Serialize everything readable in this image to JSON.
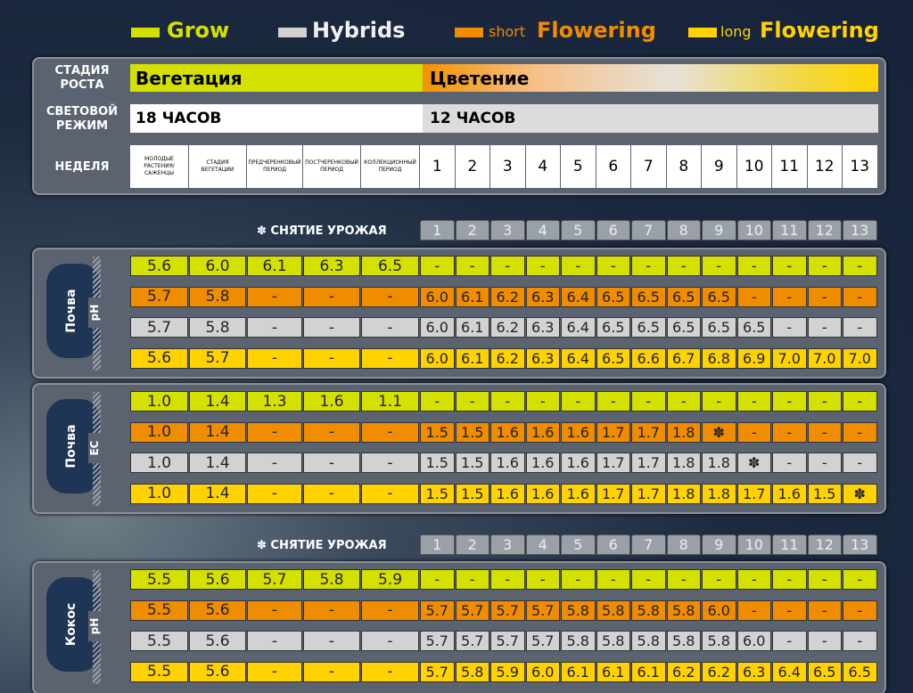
{
  "legend": [
    {
      "label": "Grow",
      "color": "#d4e000"
    },
    {
      "label": "Hybrids",
      "color": "#d2d2d2"
    },
    {
      "prefix": "short",
      "label": "Flowering",
      "color": "#f08c00"
    },
    {
      "prefix": "long",
      "label": "Flowering",
      "color": "#ffd200"
    }
  ],
  "header": {
    "stage": {
      "label": "СТАДИЯ РОСТА",
      "vegetation": "Вегетация",
      "flowering": "Цветение"
    },
    "light": {
      "label": "СВЕТОВОЙ РЕЖИМ",
      "vegetation": "18 ЧАСОВ",
      "flowering": "12 ЧАСОВ"
    },
    "week": {
      "label": "НЕДЕЛЯ",
      "periods": [
        "МОЛОДЫЕ РАСТЕНИЯ/ САЖЕНЦЫ",
        "СТАДИЯ ВЕГЕТАЦИИ",
        "ПРЕДЧЕРЕНКОВЫЙ ПЕРИОД",
        "ПОСТЧЕРЕНКОВЫЙ ПЕРИОД",
        "КОЛЛЕКЦИОННЫЙ ПЕРИОД"
      ],
      "weeks": [
        1,
        2,
        3,
        4,
        5,
        6,
        7,
        8,
        9,
        10,
        11,
        12,
        13
      ]
    }
  },
  "sections": [
    {
      "harvest": {
        "label": "✽ СНЯТИЕ УРОЖАЯ",
        "weeks": [
          1,
          2,
          3,
          4,
          5,
          6,
          7,
          8,
          9,
          10,
          11,
          12,
          13
        ]
      },
      "medium": "Почва",
      "parameter": "pH",
      "rows": [
        [
          "5.6",
          "6.0",
          "6.1",
          "6.3",
          "6.5",
          "-",
          "-",
          "-",
          "-",
          "-",
          "-",
          "-",
          "-",
          "-",
          "-",
          "-",
          "-",
          "-"
        ],
        [
          "5.7",
          "5.8",
          "-",
          "-",
          "-",
          "6.0",
          "6.1",
          "6.2",
          "6.3",
          "6.4",
          "6.5",
          "6.5",
          "6.5",
          "6.5",
          "-",
          "-",
          "-",
          "-"
        ],
        [
          "5.7",
          "5.8",
          "-",
          "-",
          "-",
          "6.0",
          "6.1",
          "6.2",
          "6.3",
          "6.4",
          "6.5",
          "6.5",
          "6.5",
          "6.5",
          "6.5",
          "-",
          "-",
          "-"
        ],
        [
          "5.6",
          "5.7",
          "-",
          "-",
          "-",
          "6.0",
          "6.1",
          "6.2",
          "6.3",
          "6.4",
          "6.5",
          "6.6",
          "6.7",
          "6.8",
          "6.9",
          "7.0",
          "7.0",
          "7.0"
        ]
      ]
    },
    {
      "medium": "Почва",
      "parameter": "EC",
      "rows": [
        [
          "1.0",
          "1.4",
          "1.3",
          "1.6",
          "1.1",
          "-",
          "-",
          "-",
          "-",
          "-",
          "-",
          "-",
          "-",
          "-",
          "-",
          "-",
          "-",
          "-"
        ],
        [
          "1.0",
          "1.4",
          "-",
          "-",
          "-",
          "1.5",
          "1.5",
          "1.6",
          "1.6",
          "1.6",
          "1.7",
          "1.7",
          "1.8",
          "✽",
          "-",
          "-",
          "-",
          "-"
        ],
        [
          "1.0",
          "1.4",
          "-",
          "-",
          "-",
          "1.5",
          "1.5",
          "1.6",
          "1.6",
          "1.6",
          "1.7",
          "1.7",
          "1.8",
          "1.8",
          "✽",
          "-",
          "-",
          "-"
        ],
        [
          "1.0",
          "1.4",
          "-",
          "-",
          "-",
          "1.5",
          "1.5",
          "1.6",
          "1.6",
          "1.6",
          "1.7",
          "1.7",
          "1.8",
          "1.8",
          "1.7",
          "1.6",
          "1.5",
          "✽"
        ]
      ]
    },
    {
      "harvest": {
        "label": "✽ СНЯТИЕ УРОЖАЯ",
        "weeks": [
          1,
          2,
          3,
          4,
          5,
          6,
          7,
          8,
          9,
          10,
          11,
          12,
          13
        ]
      },
      "medium": "Кокос",
      "parameter": "pH",
      "rows": [
        [
          "5.5",
          "5.6",
          "5.7",
          "5.8",
          "5.9",
          "-",
          "-",
          "-",
          "-",
          "-",
          "-",
          "-",
          "-",
          "-",
          "-",
          "-",
          "-",
          "-"
        ],
        [
          "5.5",
          "5.6",
          "-",
          "-",
          "-",
          "5.7",
          "5.7",
          "5.7",
          "5.7",
          "5.8",
          "5.8",
          "5.8",
          "5.8",
          "6.0",
          "-",
          "-",
          "-",
          "-"
        ],
        [
          "5.5",
          "5.6",
          "-",
          "-",
          "-",
          "5.7",
          "5.7",
          "5.7",
          "5.7",
          "5.8",
          "5.8",
          "5.8",
          "5.8",
          "5.8",
          "6.0",
          "-",
          "-",
          "-"
        ],
        [
          "5.5",
          "5.6",
          "-",
          "-",
          "-",
          "5.7",
          "5.8",
          "5.9",
          "6.0",
          "6.1",
          "6.1",
          "6.1",
          "6.2",
          "6.2",
          "6.3",
          "6.4",
          "6.5",
          "6.5"
        ]
      ]
    }
  ]
}
